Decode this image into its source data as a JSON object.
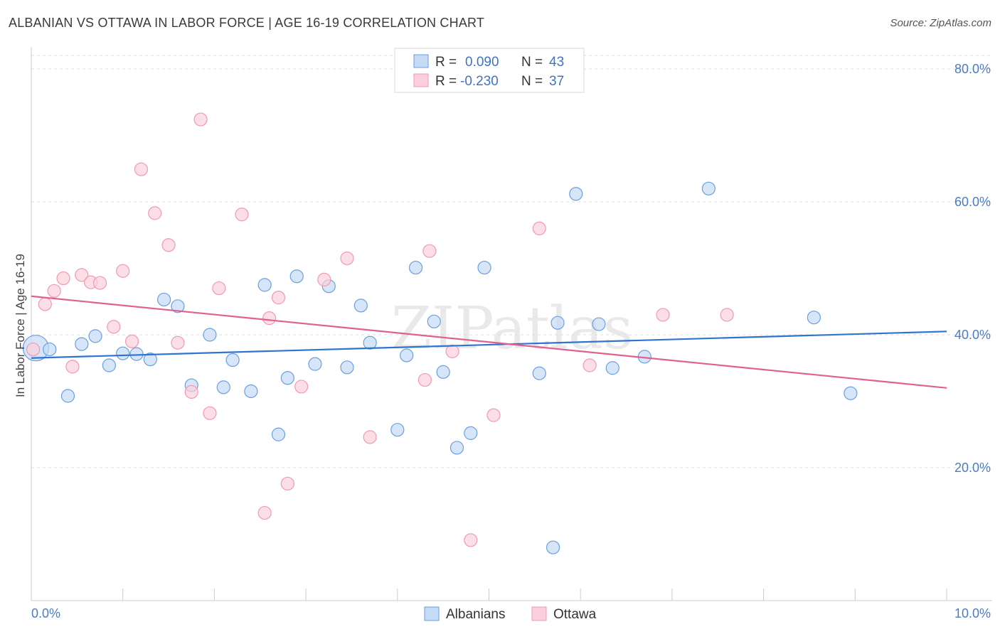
{
  "title": "ALBANIAN VS OTTAWA IN LABOR FORCE | AGE 16-19 CORRELATION CHART",
  "source": "Source: ZipAtlas.com",
  "watermark": "ZIPatlas",
  "legend_top": [
    {
      "r_label": "R =",
      "r_value": "0.090",
      "n_label": "N =",
      "n_value": "43",
      "color": "#a8c8f0"
    },
    {
      "r_label": "R =",
      "r_value": "-0.230",
      "n_label": "N =",
      "n_value": "37",
      "color": "#f7b8cb"
    }
  ],
  "legend_bottom": [
    "Albanians",
    "Ottawa"
  ],
  "chart_data": {
    "type": "scatter",
    "title": "ALBANIAN VS OTTAWA IN LABOR FORCE | AGE 16-19 CORRELATION CHART",
    "xlabel": "",
    "ylabel": "In Labor Force | Age 16-19",
    "xlim": [
      0,
      10
    ],
    "ylim": [
      0,
      80
    ],
    "x_tick_labels": [
      "0.0%",
      "10.0%"
    ],
    "y_ticks": [
      20,
      40,
      60,
      80
    ],
    "y_tick_labels": [
      "20.0%",
      "40.0%",
      "60.0%",
      "80.0%"
    ],
    "grid": true,
    "legend_position": "top-center",
    "series": [
      {
        "name": "Albanians",
        "color": "#6a9fe0",
        "fill": "#c5dbf5",
        "trend": {
          "x": [
            0,
            10
          ],
          "y": [
            36.5,
            40.5
          ],
          "color": "#2f74d0"
        },
        "points": [
          [
            0.05,
            38.0
          ],
          [
            0.2,
            37.8
          ],
          [
            0.4,
            30.8
          ],
          [
            0.55,
            38.6
          ],
          [
            0.7,
            39.8
          ],
          [
            0.85,
            35.4
          ],
          [
            1.0,
            37.2
          ],
          [
            1.15,
            37.1
          ],
          [
            1.3,
            36.3
          ],
          [
            1.45,
            45.3
          ],
          [
            1.6,
            44.3
          ],
          [
            1.75,
            32.4
          ],
          [
            1.95,
            40.0
          ],
          [
            2.1,
            32.1
          ],
          [
            2.2,
            36.2
          ],
          [
            2.4,
            31.5
          ],
          [
            2.55,
            47.5
          ],
          [
            2.7,
            25.0
          ],
          [
            2.8,
            33.5
          ],
          [
            2.9,
            48.8
          ],
          [
            3.1,
            35.6
          ],
          [
            3.25,
            47.3
          ],
          [
            3.45,
            35.1
          ],
          [
            3.6,
            44.4
          ],
          [
            3.7,
            38.8
          ],
          [
            4.0,
            25.7
          ],
          [
            4.1,
            36.9
          ],
          [
            4.2,
            50.1
          ],
          [
            4.4,
            42.0
          ],
          [
            4.5,
            34.4
          ],
          [
            4.65,
            23.0
          ],
          [
            4.8,
            25.2
          ],
          [
            4.95,
            50.1
          ],
          [
            5.55,
            34.2
          ],
          [
            5.7,
            8.0
          ],
          [
            5.75,
            41.8
          ],
          [
            5.95,
            61.2
          ],
          [
            6.2,
            41.6
          ],
          [
            6.35,
            35.0
          ],
          [
            6.7,
            36.7
          ],
          [
            7.4,
            62.0
          ],
          [
            8.55,
            42.6
          ],
          [
            8.95,
            31.2
          ]
        ]
      },
      {
        "name": "Ottawa",
        "color": "#f09ab4",
        "fill": "#f9d0dc",
        "trend": {
          "x": [
            0,
            10
          ],
          "y": [
            45.8,
            32.0
          ],
          "color": "#e0608f"
        },
        "points": [
          [
            0.02,
            37.8
          ],
          [
            0.15,
            44.6
          ],
          [
            0.25,
            46.6
          ],
          [
            0.35,
            48.5
          ],
          [
            0.45,
            35.2
          ],
          [
            0.55,
            49.0
          ],
          [
            0.65,
            47.9
          ],
          [
            0.75,
            47.8
          ],
          [
            0.9,
            41.2
          ],
          [
            1.0,
            49.6
          ],
          [
            1.1,
            39.0
          ],
          [
            1.2,
            64.9
          ],
          [
            1.35,
            58.3
          ],
          [
            1.5,
            53.5
          ],
          [
            1.6,
            38.8
          ],
          [
            1.75,
            31.4
          ],
          [
            1.85,
            72.4
          ],
          [
            1.95,
            28.2
          ],
          [
            2.05,
            47.0
          ],
          [
            2.3,
            58.1
          ],
          [
            2.55,
            13.2
          ],
          [
            2.6,
            42.5
          ],
          [
            2.7,
            45.6
          ],
          [
            2.8,
            17.6
          ],
          [
            2.95,
            32.2
          ],
          [
            3.2,
            48.3
          ],
          [
            3.45,
            51.5
          ],
          [
            3.7,
            24.6
          ],
          [
            4.3,
            33.2
          ],
          [
            4.35,
            52.6
          ],
          [
            4.6,
            37.5
          ],
          [
            4.8,
            9.1
          ],
          [
            5.05,
            27.9
          ],
          [
            5.55,
            56.0
          ],
          [
            6.1,
            35.4
          ],
          [
            6.9,
            43.0
          ],
          [
            7.6,
            43.0
          ]
        ]
      }
    ]
  }
}
